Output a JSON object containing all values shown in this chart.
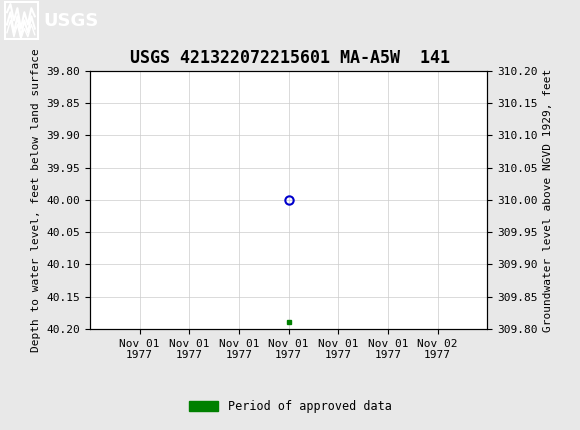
{
  "title": "USGS 421322072215601 MA-A5W  141",
  "ylabel_left": "Depth to water level, feet below land surface",
  "ylabel_right": "Groundwater level above NGVD 1929, feet",
  "ylim_left": [
    39.8,
    40.2
  ],
  "ylim_right": [
    309.8,
    310.2
  ],
  "yticks_left": [
    39.8,
    39.85,
    39.9,
    39.95,
    40.0,
    40.05,
    40.1,
    40.15,
    40.2
  ],
  "yticks_right": [
    309.8,
    309.85,
    309.9,
    309.95,
    310.0,
    310.05,
    310.1,
    310.15,
    310.2
  ],
  "data_point_x_num": 4,
  "data_point_y": 40.0,
  "green_square_x_num": 4,
  "green_square_y": 40.19,
  "header_color": "#1a6b3c",
  "background_color": "#e8e8e8",
  "plot_bg_color": "#ffffff",
  "grid_color": "#cccccc",
  "data_marker_color": "#0000cc",
  "green_color": "#008000",
  "legend_label": "Period of approved data",
  "title_fontsize": 12,
  "tick_fontsize": 8,
  "ylabel_fontsize": 8,
  "xtick_labels": [
    "Nov 01\n1977",
    "Nov 01\n1977",
    "Nov 01\n1977",
    "Nov 01\n1977",
    "Nov 01\n1977",
    "Nov 01\n1977",
    "Nov 02\n1977"
  ],
  "xlim": [
    0,
    8
  ],
  "xtick_positions": [
    1,
    2,
    3,
    4,
    5,
    6,
    7
  ]
}
